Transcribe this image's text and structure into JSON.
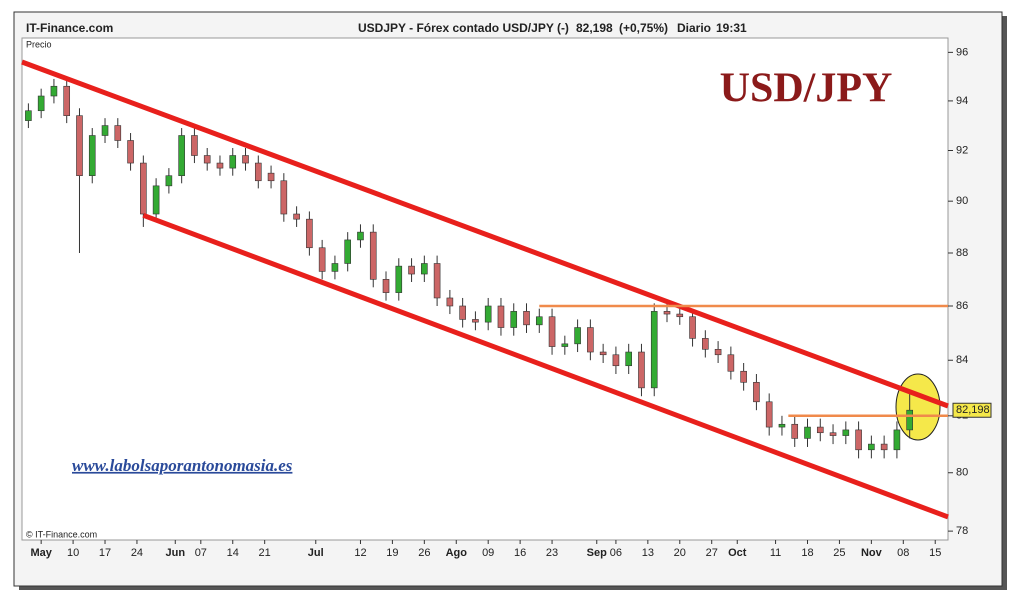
{
  "chart_data": {
    "type": "candlestick",
    "source": "IT-Finance.com",
    "symbol": "USDJPY - Fórex contado USD/JPY (-)",
    "price_tag": {
      "value": 82.198,
      "label": "82,198"
    },
    "change": "(+0,75%)",
    "period": "Diario",
    "time": "19:31",
    "title": "USD/JPY",
    "y_axis_label": "Precio",
    "watermark": "www.labolsaporantonomasia.es",
    "copyright": "© IT-Finance.com",
    "log_scale": true,
    "xlim": [
      -3,
      142
    ],
    "ylim": [
      77.7,
      96.6
    ],
    "xticks": [
      {
        "value": 0,
        "label": "May"
      },
      {
        "value": 5,
        "label": "10"
      },
      {
        "value": 10,
        "label": "17"
      },
      {
        "value": 15,
        "label": "24"
      },
      {
        "value": 21,
        "label": "Jun"
      },
      {
        "value": 25,
        "label": "07"
      },
      {
        "value": 30,
        "label": "14"
      },
      {
        "value": 35,
        "label": "21"
      },
      {
        "value": 43,
        "label": "Jul"
      },
      {
        "value": 50,
        "label": "12"
      },
      {
        "value": 55,
        "label": "19"
      },
      {
        "value": 60,
        "label": "26"
      },
      {
        "value": 65,
        "label": "Ago"
      },
      {
        "value": 70,
        "label": "09"
      },
      {
        "value": 75,
        "label": "16"
      },
      {
        "value": 80,
        "label": "23"
      },
      {
        "value": 87,
        "label": "Sep"
      },
      {
        "value": 90,
        "label": "06"
      },
      {
        "value": 95,
        "label": "13"
      },
      {
        "value": 100,
        "label": "20"
      },
      {
        "value": 105,
        "label": "27"
      },
      {
        "value": 109,
        "label": "Oct"
      },
      {
        "value": 115,
        "label": "11"
      },
      {
        "value": 120,
        "label": "18"
      },
      {
        "value": 125,
        "label": "25"
      },
      {
        "value": 130,
        "label": "Nov"
      },
      {
        "value": 135,
        "label": "08"
      },
      {
        "value": 140,
        "label": "15"
      }
    ],
    "yticks": [
      78,
      80,
      82,
      84,
      86,
      88,
      90,
      92,
      94,
      96
    ],
    "series": [
      {
        "up_color": "#33aa33",
        "down_color": "#cc6666",
        "x": [
          -2,
          0,
          2,
          4,
          6,
          8,
          10,
          12,
          14,
          16,
          18,
          20,
          22,
          24,
          26,
          28,
          30,
          32,
          34,
          36,
          38,
          40,
          42,
          44,
          46,
          48,
          50,
          52,
          54,
          56,
          58,
          60,
          62,
          64,
          66,
          68,
          70,
          72,
          74,
          76,
          78,
          80,
          82,
          84,
          86,
          88,
          90,
          92,
          94,
          96,
          98,
          100,
          102,
          104,
          106,
          108,
          110,
          112,
          114,
          116,
          118,
          120,
          122,
          124,
          126,
          128,
          130,
          132,
          134,
          136
        ],
        "open": [
          93.2,
          93.6,
          94.2,
          94.6,
          93.4,
          91.0,
          92.6,
          93.0,
          92.4,
          91.5,
          89.5,
          90.6,
          91.0,
          92.6,
          91.8,
          91.5,
          91.3,
          91.8,
          91.5,
          91.1,
          90.8,
          89.5,
          89.3,
          88.2,
          87.3,
          87.6,
          88.5,
          88.8,
          87.0,
          86.5,
          87.5,
          87.2,
          87.6,
          86.3,
          86.0,
          85.5,
          85.4,
          86.0,
          85.2,
          85.8,
          85.3,
          85.6,
          84.5,
          84.6,
          85.2,
          84.3,
          84.2,
          83.8,
          84.3,
          83.0,
          85.8,
          85.7,
          85.6,
          84.8,
          84.4,
          84.2,
          83.6,
          83.2,
          82.5,
          81.6,
          81.7,
          81.2,
          81.6,
          81.4,
          81.3,
          81.5,
          80.8,
          81.0,
          80.8,
          81.5
        ],
        "high": [
          93.9,
          94.5,
          94.9,
          94.9,
          93.7,
          92.9,
          93.3,
          93.3,
          92.7,
          91.8,
          90.9,
          91.3,
          92.9,
          92.9,
          92.1,
          91.8,
          92.1,
          92.1,
          91.8,
          91.4,
          91.1,
          89.8,
          89.6,
          88.5,
          87.9,
          88.8,
          89.1,
          89.1,
          87.3,
          87.8,
          87.8,
          87.9,
          87.9,
          86.6,
          86.3,
          85.8,
          86.3,
          86.3,
          86.1,
          86.1,
          85.9,
          85.9,
          84.9,
          85.5,
          85.5,
          84.6,
          84.5,
          84.6,
          84.6,
          86.1,
          86.1,
          86.0,
          85.9,
          85.1,
          84.7,
          84.5,
          83.9,
          83.5,
          82.8,
          82.0,
          82.0,
          81.9,
          81.9,
          81.7,
          81.8,
          81.8,
          81.3,
          81.3,
          81.8,
          82.8
        ],
        "low": [
          92.9,
          93.3,
          93.9,
          93.1,
          88.0,
          90.7,
          92.3,
          92.1,
          91.2,
          89.0,
          89.2,
          90.3,
          90.7,
          91.5,
          91.2,
          91.0,
          91.0,
          91.2,
          90.5,
          90.5,
          89.2,
          89.0,
          87.9,
          87.0,
          87.0,
          87.3,
          88.2,
          86.7,
          86.2,
          86.2,
          86.9,
          86.9,
          86.0,
          85.7,
          85.2,
          85.1,
          85.1,
          84.9,
          84.9,
          85.0,
          85.0,
          84.2,
          84.2,
          84.3,
          84.0,
          83.9,
          83.5,
          83.5,
          82.7,
          82.7,
          85.4,
          85.3,
          84.5,
          84.1,
          83.9,
          83.3,
          82.9,
          82.2,
          81.3,
          81.3,
          80.9,
          80.9,
          81.1,
          81.0,
          81.0,
          80.5,
          80.5,
          80.5,
          80.5,
          81.2
        ],
        "close": [
          93.6,
          94.2,
          94.6,
          93.4,
          91.0,
          92.6,
          93.0,
          92.4,
          91.5,
          89.5,
          90.6,
          91.0,
          92.6,
          91.8,
          91.5,
          91.3,
          91.8,
          91.5,
          90.8,
          90.8,
          89.5,
          89.3,
          88.2,
          87.3,
          87.6,
          88.5,
          88.8,
          87.0,
          86.5,
          87.5,
          87.2,
          87.6,
          86.3,
          86.0,
          85.5,
          85.4,
          86.0,
          85.2,
          85.8,
          85.3,
          85.6,
          84.5,
          84.6,
          85.2,
          84.3,
          84.2,
          83.8,
          84.3,
          83.0,
          85.8,
          85.7,
          85.6,
          84.8,
          84.4,
          84.2,
          83.6,
          83.2,
          82.5,
          81.6,
          81.7,
          81.2,
          81.6,
          81.4,
          81.3,
          81.5,
          80.8,
          81.0,
          80.8,
          81.5,
          82.2
        ]
      }
    ],
    "trend_lines": [
      {
        "x": [
          -3,
          142
        ],
        "y": [
          95.6,
          82.35
        ],
        "color": "#e8201c"
      },
      {
        "x": [
          16,
          142
        ],
        "y": [
          89.45,
          78.48
        ],
        "color": "#e8201c"
      }
    ],
    "levels": [
      {
        "x": [
          78,
          142
        ],
        "y": 86,
        "color": "#f08a4b"
      },
      {
        "x": [
          117,
          142
        ],
        "y": 82,
        "color": "#f08a4b"
      }
    ]
  }
}
